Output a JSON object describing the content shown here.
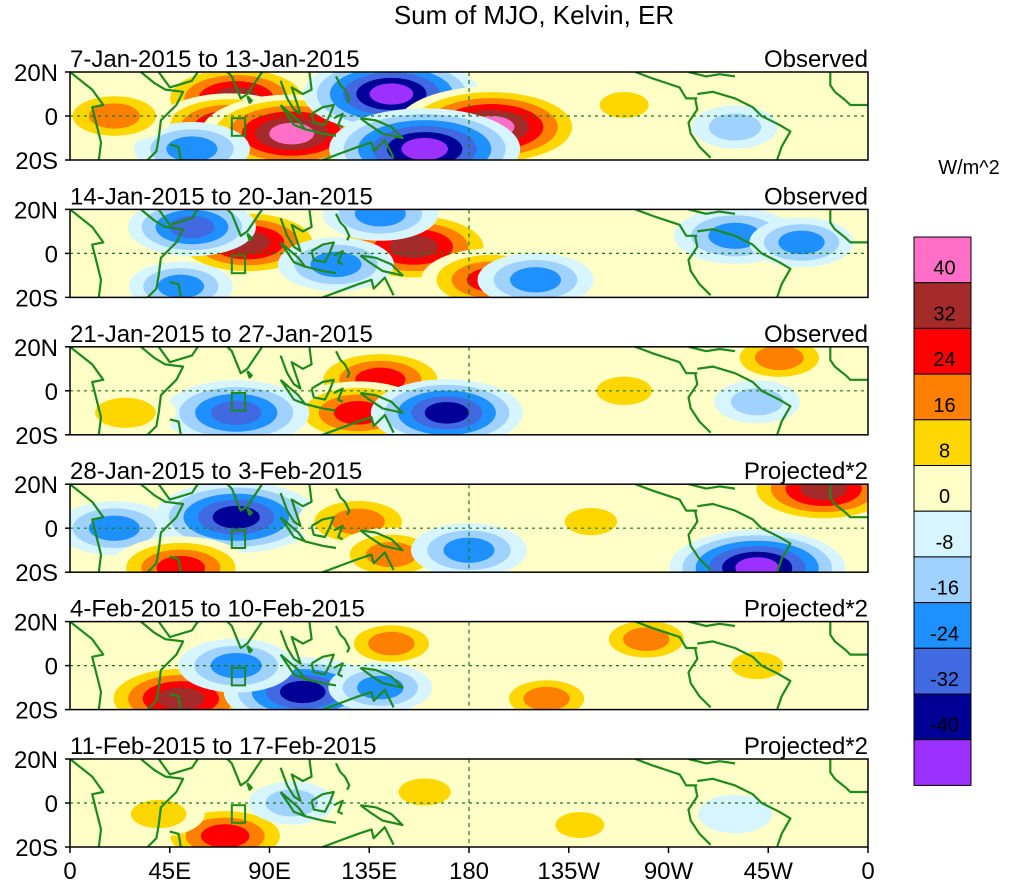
{
  "title": "Sum of MJO, Kelvin, ER",
  "colorbar": {
    "units": "W/m^2",
    "levels": [
      "40",
      "32",
      "24",
      "16",
      "8",
      "0",
      "-8",
      "-16",
      "-24",
      "-32",
      "-40"
    ],
    "colors": [
      "#ff6ec7",
      "#a52a2a",
      "#ff0000",
      "#ff7f00",
      "#ffd700",
      "#ffffc8",
      "#d7f5ff",
      "#a0d2ff",
      "#1e90ff",
      "#4169e1",
      "#000096",
      "#9b30ff"
    ]
  },
  "chart_data": {
    "type": "heatmap",
    "title": "Sum of MJO, Kelvin, ER",
    "xlabel": "",
    "ylabel": "",
    "x_range": [
      0,
      360
    ],
    "y_range": [
      -20,
      20
    ],
    "x_ticks": [
      "0",
      "45E",
      "90E",
      "135E",
      "180",
      "135W",
      "90W",
      "45W",
      "0"
    ],
    "y_ticks": [
      "20N",
      "0",
      "20S"
    ],
    "panels": [
      {
        "date_range": "7-Jan-2015 to 13-Jan-2015",
        "label": "Observed",
        "blobs": [
          [
            75,
            8,
            35
          ],
          [
            72,
            -5,
            32
          ],
          [
            100,
            -8,
            42
          ],
          [
            145,
            10,
            -40
          ],
          [
            190,
            -5,
            45
          ],
          [
            160,
            -15,
            -45
          ],
          [
            55,
            -15,
            -20
          ],
          [
            20,
            0,
            20
          ],
          [
            300,
            -5,
            -10
          ],
          [
            250,
            5,
            8
          ]
        ]
      },
      {
        "date_range": "14-Jan-2015 to 20-Jan-2015",
        "label": "Observed",
        "blobs": [
          [
            80,
            5,
            34
          ],
          [
            155,
            3,
            38
          ],
          [
            190,
            -12,
            28
          ],
          [
            55,
            12,
            -24
          ],
          [
            120,
            -5,
            -20
          ],
          [
            140,
            18,
            -20
          ],
          [
            210,
            -12,
            -20
          ],
          [
            300,
            8,
            -22
          ],
          [
            330,
            5,
            -16
          ],
          [
            50,
            -15,
            -16
          ]
        ]
      },
      {
        "date_range": "21-Jan-2015 to 27-Jan-2015",
        "label": "Observed",
        "blobs": [
          [
            140,
            5,
            30
          ],
          [
            130,
            -10,
            28
          ],
          [
            75,
            -10,
            -30
          ],
          [
            170,
            -10,
            -32
          ],
          [
            25,
            -10,
            15
          ],
          [
            250,
            0,
            12
          ],
          [
            320,
            15,
            18
          ],
          [
            310,
            -5,
            -10
          ]
        ]
      },
      {
        "date_range": "28-Jan-2015 to 3-Feb-2015",
        "label": "Projected*2",
        "blobs": [
          [
            75,
            5,
            -36
          ],
          [
            20,
            0,
            -20
          ],
          [
            130,
            3,
            22
          ],
          [
            145,
            -12,
            20
          ],
          [
            50,
            -18,
            28
          ],
          [
            340,
            18,
            36
          ],
          [
            310,
            -18,
            -40
          ],
          [
            180,
            -10,
            -20
          ],
          [
            235,
            3,
            10
          ]
        ]
      },
      {
        "date_range": "4-Feb-2015 to 10-Feb-2015",
        "label": "Projected*2",
        "blobs": [
          [
            50,
            -15,
            36
          ],
          [
            105,
            -12,
            -34
          ],
          [
            75,
            0,
            -20
          ],
          [
            145,
            10,
            16
          ],
          [
            215,
            -15,
            16
          ],
          [
            260,
            12,
            16
          ],
          [
            310,
            0,
            10
          ],
          [
            140,
            -10,
            -16
          ]
        ]
      },
      {
        "date_range": "11-Feb-2015 to 17-Feb-2015",
        "label": "Projected*2",
        "blobs": [
          [
            70,
            -15,
            28
          ],
          [
            40,
            -5,
            12
          ],
          [
            160,
            5,
            10
          ],
          [
            230,
            -10,
            8
          ],
          [
            100,
            0,
            -10
          ],
          [
            300,
            -5,
            -6
          ]
        ]
      }
    ]
  }
}
